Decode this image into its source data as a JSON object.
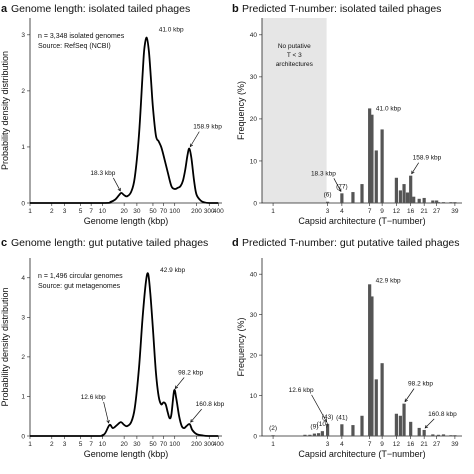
{
  "chart_data": [
    {
      "id": "a",
      "type": "line",
      "panel_letter": "a",
      "title": "Genome length: isolated tailed phages",
      "xlabel": "Genome length (kbp)",
      "ylabel": "Probability density distribution",
      "x_scale": "log",
      "x_ticks": [
        1,
        2,
        3,
        5,
        7,
        10,
        20,
        30,
        50,
        70,
        100,
        200,
        300,
        400
      ],
      "y_ticks": [
        0,
        1,
        2,
        3
      ],
      "xlim": [
        1,
        450
      ],
      "ylim": [
        0,
        3.3
      ],
      "notes": [
        "n = 3,348 isolated genomes",
        "Source: RefSeq (NCBI)"
      ],
      "x": [
        1,
        10,
        13,
        15,
        17,
        18.3,
        20,
        22,
        25,
        28,
        32,
        36,
        38,
        41,
        44,
        47,
        50,
        55,
        60,
        65,
        70,
        80,
        90,
        100,
        110,
        120,
        130,
        140,
        150,
        159,
        170,
        185,
        200,
        230,
        260,
        300,
        350,
        400
      ],
      "y": [
        0,
        0,
        0.02,
        0.06,
        0.14,
        0.18,
        0.14,
        0.12,
        0.2,
        0.45,
        1.2,
        2.3,
        2.75,
        2.95,
        2.7,
        2.2,
        1.7,
        1.2,
        1.1,
        1.0,
        0.85,
        0.55,
        0.3,
        0.25,
        0.27,
        0.3,
        0.4,
        0.6,
        0.85,
        0.97,
        0.8,
        0.4,
        0.15,
        0.04,
        0.01,
        0,
        0,
        0
      ],
      "annotations": [
        {
          "label": "41.0 kbp",
          "x": 41,
          "y": 2.95
        },
        {
          "label": "158.9 kbp",
          "x": 158.9,
          "y": 0.97
        },
        {
          "label": "18.3 kbp",
          "x": 18.3,
          "y": 0.18
        }
      ]
    },
    {
      "id": "b",
      "type": "bar",
      "panel_letter": "b",
      "title": "Predicted T-number: isolated tailed phages",
      "xlabel": "Capsid architecture (T−number)",
      "ylabel": "Frequency (%)",
      "x_scale": "log",
      "x_ticks": [
        1,
        3,
        4,
        7,
        9,
        12,
        16,
        21,
        27,
        39
      ],
      "y_ticks": [
        0,
        10,
        20,
        30,
        40
      ],
      "xlim": [
        0.8,
        45
      ],
      "ylim": [
        0,
        44
      ],
      "shaded_region": {
        "from": 0.8,
        "to": 3,
        "label_lines": [
          "No putative",
          "T < 3",
          "architectures"
        ]
      },
      "x": [
        3,
        4,
        5,
        6,
        7,
        7.33,
        8,
        9,
        12,
        13,
        14,
        15,
        16,
        17,
        19,
        21,
        25,
        27,
        28,
        31,
        36,
        39
      ],
      "values": [
        0.3,
        2.3,
        2.6,
        4.5,
        22.5,
        21.0,
        12.5,
        17.5,
        6.0,
        3.0,
        4.5,
        2.5,
        6.5,
        1.5,
        1.0,
        1.2,
        0.6,
        0.6,
        0.2,
        0.2,
        0.2,
        0.2
      ],
      "annotations": [
        {
          "label": "41.0 kbp",
          "x": 7.33,
          "y": 21.0
        },
        {
          "label": "158.9 kbp",
          "x": 16,
          "y": 6.5
        },
        {
          "label": "18.3 kbp",
          "x": 4,
          "y": 2.3
        }
      ],
      "count_labels": [
        {
          "label": "(6)",
          "x": 3,
          "y": 0.3
        },
        {
          "label": "(77)",
          "x": 4,
          "y": 2.3
        }
      ]
    },
    {
      "id": "c",
      "type": "line",
      "panel_letter": "c",
      "title": "Genome length: gut putative tailed phages",
      "xlabel": "Genome length (kbp)",
      "ylabel": "Probability density distribution",
      "x_scale": "log",
      "x_ticks": [
        1,
        2,
        3,
        5,
        7,
        10,
        20,
        30,
        50,
        70,
        100,
        200,
        300,
        400
      ],
      "y_ticks": [
        0,
        1,
        2,
        3,
        4
      ],
      "xlim": [
        1,
        450
      ],
      "ylim": [
        0,
        4.5
      ],
      "notes": [
        "n = 1,496 circular genomes",
        "Source: gut metagenomes"
      ],
      "x": [
        1,
        8,
        10,
        11,
        12.6,
        14,
        16,
        18,
        20,
        22,
        25,
        28,
        32,
        36,
        40,
        42.9,
        46,
        50,
        55,
        60,
        65,
        70,
        75,
        80,
        85,
        90,
        98.2,
        105,
        115,
        125,
        135,
        145,
        160.8,
        175,
        200,
        250,
        300,
        400
      ],
      "y": [
        0,
        0,
        0.02,
        0.08,
        0.28,
        0.2,
        0.28,
        0.35,
        0.28,
        0.25,
        0.35,
        0.7,
        1.7,
        3.0,
        3.9,
        4.1,
        3.6,
        2.7,
        1.6,
        1.0,
        0.8,
        0.85,
        0.8,
        0.6,
        0.45,
        0.55,
        1.15,
        0.95,
        0.5,
        0.25,
        0.2,
        0.25,
        0.3,
        0.15,
        0.05,
        0.01,
        0,
        0
      ],
      "annotations": [
        {
          "label": "42.9 kbp",
          "x": 42.9,
          "y": 4.1
        },
        {
          "label": "98.2 kbp",
          "x": 98.2,
          "y": 1.15
        },
        {
          "label": "160.8 kbp",
          "x": 160.8,
          "y": 0.3
        },
        {
          "label": "12.6 kbp",
          "x": 12.6,
          "y": 0.28
        }
      ]
    },
    {
      "id": "d",
      "type": "bar",
      "panel_letter": "d",
      "title": "Predicted T-number: gut putative tailed phages",
      "xlabel": "Capsid architecture (T−number)",
      "ylabel": "Frequency (%)",
      "x_scale": "log",
      "x_ticks": [
        1,
        3,
        4,
        7,
        9,
        12,
        16,
        21,
        27,
        39
      ],
      "y_ticks": [
        0,
        10,
        20,
        30,
        40
      ],
      "xlim": [
        0.8,
        45
      ],
      "ylim": [
        0,
        44
      ],
      "x": [
        1,
        1.9,
        2.1,
        2.3,
        2.5,
        2.7,
        3,
        4,
        5,
        6,
        7,
        7.33,
        8,
        9,
        12,
        13,
        14,
        16,
        19,
        21,
        25,
        28,
        31,
        36,
        39
      ],
      "values": [
        0.2,
        0.3,
        0.3,
        0.6,
        0.7,
        1.2,
        3.0,
        2.9,
        2.7,
        5.0,
        37.5,
        34.5,
        14.0,
        18.0,
        5.5,
        5.0,
        8.0,
        3.5,
        2.0,
        1.5,
        0.4,
        0.3,
        0.4,
        0.2,
        0.2
      ],
      "annotations": [
        {
          "label": "42.9 kbp",
          "x": 7,
          "y": 37.5
        },
        {
          "label": "98.2 kbp",
          "x": 14,
          "y": 8.0
        },
        {
          "label": "160.8 kbp",
          "x": 21,
          "y": 1.5
        },
        {
          "label": "12.6 kbp",
          "x": 3,
          "y": 3.0
        }
      ],
      "count_labels": [
        {
          "label": "(2)",
          "x": 1,
          "y": 0.2
        },
        {
          "label": "(9)",
          "x": 2.3,
          "y": 0.6
        },
        {
          "label": "(10)",
          "x": 2.7,
          "y": 1.2
        },
        {
          "label": "(43)",
          "x": 3,
          "y": 3.0
        },
        {
          "label": "(41)",
          "x": 4,
          "y": 2.9
        }
      ]
    }
  ]
}
